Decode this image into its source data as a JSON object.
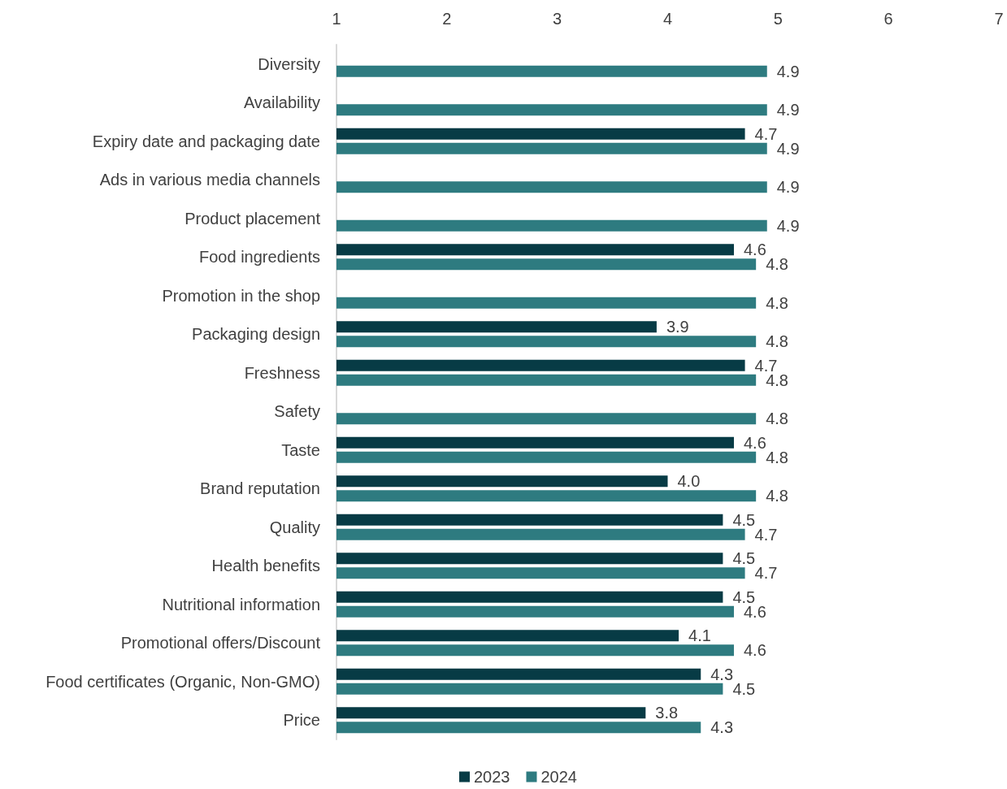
{
  "chart_data": {
    "type": "bar",
    "orientation": "horizontal",
    "categories": [
      "Diversity",
      "Availability",
      "Expiry date and packaging date",
      "Ads in various media channels",
      "Product placement",
      "Food ingredients",
      "Promotion in the shop",
      "Packaging design",
      "Freshness",
      "Safety",
      "Taste",
      "Brand reputation",
      "Quality",
      "Health benefits",
      "Nutritional information",
      "Promotional offers/Discount",
      "Food certificates (Organic, Non-GMO)",
      "Price"
    ],
    "series": [
      {
        "name": "2023",
        "color": "#073b45",
        "values": [
          null,
          null,
          4.7,
          null,
          null,
          4.6,
          null,
          3.9,
          4.7,
          null,
          4.6,
          4.0,
          4.5,
          4.5,
          4.5,
          4.1,
          4.3,
          3.8
        ],
        "value_labels": [
          null,
          null,
          "4.7",
          null,
          null,
          "4.6",
          null,
          "3.9",
          "4.7",
          null,
          "4.6",
          "4.0",
          "4.5",
          "4.5",
          "4.5",
          "4.1",
          "4.3",
          "3.8"
        ]
      },
      {
        "name": "2024",
        "color": "#2e7b80",
        "values": [
          4.9,
          4.9,
          4.9,
          4.9,
          4.9,
          4.8,
          4.8,
          4.8,
          4.8,
          4.8,
          4.8,
          4.8,
          4.7,
          4.7,
          4.6,
          4.6,
          4.5,
          4.3
        ],
        "value_labels": [
          "4.9",
          "4.9",
          "4.9",
          "4.9",
          "4.9",
          "4.8",
          "4.8",
          "4.8",
          "4.8",
          "4.8",
          "4.8",
          "4.8",
          "4.7",
          "4.7",
          "4.6",
          "4.6",
          "4.5",
          "4.3"
        ]
      }
    ],
    "xlim": [
      1,
      7
    ],
    "xticks": [
      1,
      2,
      3,
      4,
      5,
      6,
      7
    ],
    "legend": "bottom",
    "grid": false
  }
}
